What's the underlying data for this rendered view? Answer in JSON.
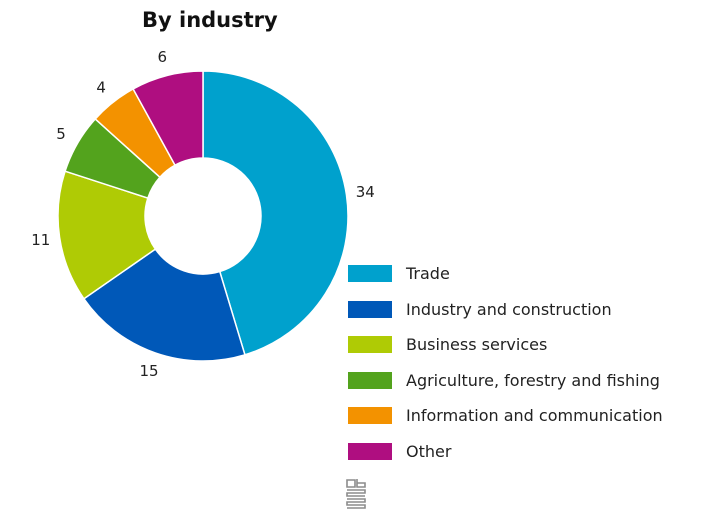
{
  "chart_data": {
    "type": "pie",
    "donut": true,
    "title": "By industry",
    "categories": [
      "Trade",
      "Industry and construction",
      "Business services",
      "Agriculture, forestry and fishing",
      "Information and communication",
      "Other"
    ],
    "values": [
      34,
      15,
      11,
      5,
      4,
      6
    ],
    "colors": [
      "#00a1cd",
      "#0058b8",
      "#afcb05",
      "#53a31d",
      "#f39200",
      "#af0e80"
    ],
    "legend_position": "right"
  },
  "logo": {
    "icon": "cbs-logo-icon"
  }
}
